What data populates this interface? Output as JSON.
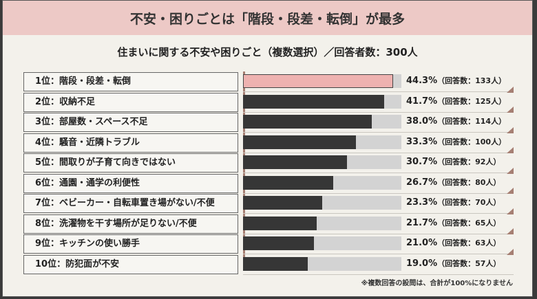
{
  "header": {
    "title": "不安・困りごとは「階段・段差・転倒」が最多"
  },
  "subtitle": "住まいに関する不安や困りごと（複数選択）／回答者数：300人",
  "footnote": "※複数回答の設問は、合計が100%になりません",
  "colors": {
    "highlight": "#eeb2b0",
    "bar": "#363636",
    "track": "#d3d3d3",
    "accent": "#a67f73",
    "header_bg": "#edc9c6"
  },
  "chart_data": {
    "type": "bar",
    "orientation": "horizontal",
    "xlim": [
      0,
      46.7
    ],
    "unit": "%",
    "categories": [
      "1位：階段・段差・転倒",
      "2位：収納不足",
      "3位：部屋数・スペース不足",
      "4位：騒音・近隣トラブル",
      "5位：間取りが子育て向きではない",
      "6位：通園・通学の利便性",
      "7位：ベビーカー・自転車置き場がない/不便",
      "8位：洗濯物を干す場所が足りない/不便",
      "9位：キッチンの使い勝手",
      "10位：防犯面が不安"
    ],
    "values": [
      44.3,
      41.7,
      38.0,
      33.3,
      30.7,
      26.7,
      23.3,
      21.7,
      21.0,
      19.0
    ],
    "value_labels": [
      "44.3%",
      "41.7%",
      "38.0%",
      "33.3%",
      "30.7%",
      "26.7%",
      "23.3%",
      "21.7%",
      "21.0%",
      "19.0%"
    ],
    "count_labels": [
      "（回答数：133人）",
      "（回答数：125人）",
      "（回答数：114人）",
      "（回答数：100人）",
      "（回答数：92人）",
      "（回答数：80人）",
      "（回答数：70人）",
      "（回答数：65人）",
      "（回答数：63人）",
      "（回答数：57人）"
    ]
  }
}
